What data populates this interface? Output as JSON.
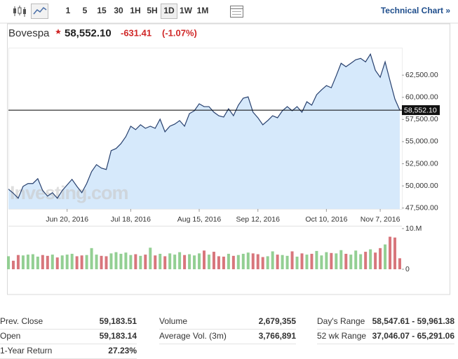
{
  "toolbar": {
    "intervals": [
      "1",
      "5",
      "15",
      "30",
      "1H",
      "5H",
      "1D",
      "1W",
      "1M"
    ],
    "selected": "1D",
    "technical_link": "Technical Chart »"
  },
  "quote": {
    "name": "Bovespa",
    "price": "58,552.10",
    "change": "-631.41",
    "change_pct": "(-1.07%)"
  },
  "chart_data": [
    {
      "type": "area",
      "color": "#27406e",
      "fill": "#d6e9fb",
      "watermark": "Investing.com",
      "values": [
        49640,
        49170,
        48610,
        49950,
        50270,
        50270,
        50820,
        49480,
        48850,
        49240,
        48610,
        49480,
        50110,
        50740,
        49950,
        49240,
        50270,
        51610,
        52400,
        52010,
        51850,
        53980,
        54220,
        54770,
        55560,
        56740,
        56350,
        56900,
        56500,
        56740,
        56500,
        57530,
        56110,
        56740,
        56980,
        57370,
        56740,
        58160,
        58480,
        59270,
        58950,
        58950,
        58320,
        57920,
        57770,
        58710,
        57920,
        59110,
        59900,
        60050,
        58320,
        57690,
        56900,
        57370,
        57920,
        57690,
        58480,
        58950,
        58480,
        58950,
        58320,
        59500,
        59110,
        60290,
        60840,
        61320,
        61080,
        62420,
        63840,
        63450,
        63840,
        64240,
        64390,
        64000,
        64870,
        63050,
        62260,
        64000,
        61870,
        59800,
        58552.1
      ],
      "last_label": "58,552.10",
      "xlim": [
        0,
        80
      ],
      "xticks": [
        {
          "value": 12,
          "label": "Jun 20, 2016"
        },
        {
          "value": 25,
          "label": "Jul 18, 2016"
        },
        {
          "value": 39,
          "label": "Aug 15, 2016"
        },
        {
          "value": 51,
          "label": "Sep 12, 2016"
        },
        {
          "value": 65,
          "label": "Oct 10, 2016"
        },
        {
          "value": 76,
          "label": "Nov 7, 2016"
        }
      ],
      "ylim": [
        47400,
        65600
      ],
      "yticks": [
        {
          "value": 47500,
          "label": "47,500.00"
        },
        {
          "value": 50000,
          "label": "50,000.00"
        },
        {
          "value": 52500,
          "label": "52,500.00"
        },
        {
          "value": 55000,
          "label": "55,000.00"
        },
        {
          "value": 57500,
          "label": "57,500.00"
        },
        {
          "value": 60000,
          "label": "60,000.00"
        },
        {
          "value": 62500,
          "label": "62,500.00"
        }
      ]
    },
    {
      "type": "bar",
      "up_color": "#93cf93",
      "down_color": "#d8767c",
      "values": [
        3.2,
        2.1,
        3.5,
        3.4,
        3.6,
        3.7,
        3.1,
        3.5,
        3.3,
        3.6,
        2.9,
        3.4,
        3.6,
        3.8,
        3.2,
        3.4,
        3.5,
        5.2,
        3.6,
        3.3,
        3.2,
        3.9,
        4.2,
        3.8,
        4.1,
        3.5,
        3.7,
        3.3,
        3.6,
        5.3,
        3.4,
        3.8,
        3.2,
        3.9,
        3.6,
        4.2,
        3.5,
        3.7,
        3.4,
        3.9,
        4.6,
        3.6,
        4.3,
        3.2,
        3.1,
        3.8,
        3.3,
        3.5,
        3.8,
        4.1,
        3.9,
        3.7,
        3.0,
        3.2,
        4.4,
        3.6,
        3.5,
        3.3,
        4.4,
        3.1,
        3.9,
        3.6,
        3.8,
        4.5,
        3.4,
        4.2,
        4.0,
        3.9,
        4.7,
        3.8,
        3.6,
        4.6,
        3.7,
        4.3,
        4.9,
        4.1,
        5.2,
        6.1,
        8.0,
        7.8,
        2.7
      ],
      "ylim": [
        0,
        10
      ],
      "yticks": [
        {
          "value": 10,
          "label": "10.M"
        },
        0
      ]
    }
  ],
  "stats": [
    [
      {
        "label": "Prev. Close",
        "value": "59,183.51"
      },
      {
        "label": "Open",
        "value": "59,183.14"
      },
      {
        "label": "1-Year Return",
        "value": "27.23%"
      }
    ],
    [
      {
        "label": "Volume",
        "value": "2,679,355"
      },
      {
        "label": "Average Vol. (3m)",
        "value": "3,766,891"
      }
    ],
    [
      {
        "label": "Day's Range",
        "value": "58,547.61 - 59,961.38"
      },
      {
        "label": "52 wk Range",
        "value": "37,046.07 - 65,291.06"
      }
    ]
  ]
}
